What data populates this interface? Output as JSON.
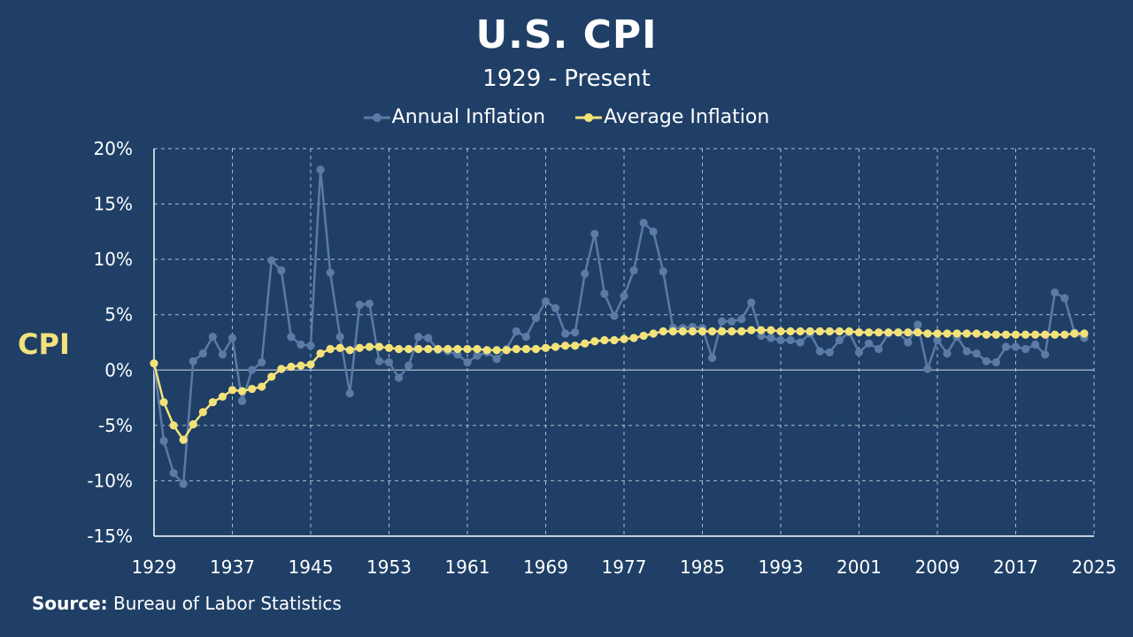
{
  "title": "U.S. CPI",
  "subtitle": "1929 - Present",
  "ylabel_text": "CPI",
  "source": {
    "label": "Source:",
    "text": "Bureau of Labor Statistics"
  },
  "colors": {
    "background": "#1f3f66",
    "annual": "#5b7ba6",
    "average": "#f3e27a",
    "grid": "#c7d2e0",
    "text": "#ffffff"
  },
  "chart_data": {
    "type": "line",
    "title": "U.S. CPI",
    "subtitle": "1929 - Present",
    "ylabel": "CPI",
    "xlabel": "",
    "xlim": [
      1929,
      2025
    ],
    "ylim": [
      -15,
      20
    ],
    "x_ticks": [
      "1929",
      "1937",
      "1945",
      "1953",
      "1961",
      "1969",
      "1977",
      "1985",
      "1993",
      "2001",
      "2009",
      "2017",
      "2025"
    ],
    "y_ticks": [
      "20%",
      "15%",
      "10%",
      "5%",
      "0%",
      "-5%",
      "-10%",
      "-15%"
    ],
    "grid": true,
    "legend_position": "top-center",
    "series": [
      {
        "name": "Annual Inflation",
        "start_year": 1929,
        "values": [
          0.6,
          -6.4,
          -9.3,
          -10.3,
          0.8,
          1.5,
          3.0,
          1.4,
          2.9,
          -2.8,
          0.0,
          0.7,
          9.9,
          9.0,
          3.0,
          2.3,
          2.2,
          18.1,
          8.8,
          3.0,
          -2.1,
          5.9,
          6.0,
          0.8,
          0.7,
          -0.7,
          0.4,
          3.0,
          2.9,
          1.8,
          1.7,
          1.4,
          0.7,
          1.3,
          1.6,
          1.0,
          1.9,
          3.5,
          3.0,
          4.7,
          6.2,
          5.6,
          3.3,
          3.4,
          8.7,
          12.3,
          6.9,
          4.9,
          6.7,
          9.0,
          13.3,
          12.5,
          8.9,
          3.8,
          3.8,
          3.9,
          3.8,
          1.1,
          4.4,
          4.4,
          4.6,
          6.1,
          3.1,
          2.9,
          2.7,
          2.7,
          2.5,
          3.3,
          1.7,
          1.6,
          2.7,
          3.4,
          1.6,
          2.4,
          1.9,
          3.3,
          3.4,
          2.5,
          4.1,
          0.1,
          2.7,
          1.5,
          3.0,
          1.7,
          1.5,
          0.8,
          0.7,
          2.1,
          2.1,
          1.9,
          2.3,
          1.4,
          7.0,
          6.5,
          3.4,
          2.9
        ]
      },
      {
        "name": "Average Inflation",
        "start_year": 1929,
        "values": [
          0.6,
          -2.9,
          -5.0,
          -6.3,
          -4.9,
          -3.8,
          -2.9,
          -2.4,
          -1.8,
          -1.9,
          -1.7,
          -1.5,
          -0.6,
          0.1,
          0.3,
          0.4,
          0.5,
          1.5,
          1.9,
          2.0,
          1.8,
          2.0,
          2.1,
          2.1,
          2.0,
          1.9,
          1.9,
          1.9,
          1.9,
          1.9,
          1.9,
          1.9,
          1.9,
          1.9,
          1.8,
          1.8,
          1.8,
          1.9,
          1.9,
          1.9,
          2.0,
          2.1,
          2.2,
          2.2,
          2.4,
          2.6,
          2.7,
          2.7,
          2.8,
          2.9,
          3.1,
          3.3,
          3.5,
          3.5,
          3.5,
          3.5,
          3.5,
          3.5,
          3.5,
          3.5,
          3.5,
          3.6,
          3.6,
          3.6,
          3.5,
          3.5,
          3.5,
          3.5,
          3.5,
          3.5,
          3.5,
          3.5,
          3.4,
          3.4,
          3.4,
          3.4,
          3.4,
          3.4,
          3.4,
          3.3,
          3.3,
          3.3,
          3.3,
          3.3,
          3.3,
          3.2,
          3.2,
          3.2,
          3.2,
          3.2,
          3.2,
          3.2,
          3.2,
          3.2,
          3.3,
          3.3
        ]
      }
    ]
  }
}
